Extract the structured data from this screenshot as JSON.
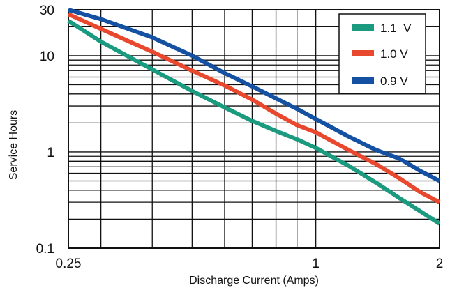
{
  "chart_data": {
    "type": "line",
    "xlabel": "Discharge Current (Amps)",
    "ylabel": "Service Hours",
    "x_scale": "log",
    "y_scale": "log",
    "xlim": [
      0.25,
      2
    ],
    "ylim": [
      0.1,
      30
    ],
    "x_ticks": [
      {
        "value": 0.25,
        "label": "0.25"
      },
      {
        "value": 1,
        "label": "1"
      },
      {
        "value": 2,
        "label": "2"
      }
    ],
    "y_ticks": [
      {
        "value": 0.1,
        "label": "0.1"
      },
      {
        "value": 1,
        "label": "1"
      },
      {
        "value": 10,
        "label": "10"
      },
      {
        "value": 30,
        "label": "30"
      }
    ],
    "grid": true,
    "legend_position": "top-right",
    "series": [
      {
        "name": "1.1  V",
        "color": "#1a9a7e",
        "points": [
          [
            0.25,
            23.0
          ],
          [
            0.3,
            14.0
          ],
          [
            0.4,
            7.2
          ],
          [
            0.5,
            4.3
          ],
          [
            0.6,
            2.9
          ],
          [
            0.7,
            2.1
          ],
          [
            0.8,
            1.65
          ],
          [
            0.9,
            1.35
          ],
          [
            1.0,
            1.1
          ],
          [
            1.2,
            0.72
          ],
          [
            1.4,
            0.48
          ],
          [
            1.6,
            0.33
          ],
          [
            1.8,
            0.24
          ],
          [
            2.0,
            0.18
          ]
        ]
      },
      {
        "name": "1.0 V",
        "color": "#e8482e",
        "points": [
          [
            0.25,
            27.0
          ],
          [
            0.3,
            19.0
          ],
          [
            0.4,
            11.0
          ],
          [
            0.5,
            7.0
          ],
          [
            0.6,
            4.9
          ],
          [
            0.7,
            3.5
          ],
          [
            0.8,
            2.5
          ],
          [
            0.9,
            1.9
          ],
          [
            1.0,
            1.6
          ],
          [
            1.2,
            1.05
          ],
          [
            1.4,
            0.75
          ],
          [
            1.6,
            0.53
          ],
          [
            1.8,
            0.38
          ],
          [
            2.0,
            0.3
          ]
        ]
      },
      {
        "name": "0.9 V",
        "color": "#1551a3",
        "points": [
          [
            0.25,
            30.0
          ],
          [
            0.3,
            24.0
          ],
          [
            0.4,
            15.5
          ],
          [
            0.5,
            10.0
          ],
          [
            0.6,
            6.6
          ],
          [
            0.7,
            4.8
          ],
          [
            0.8,
            3.6
          ],
          [
            0.9,
            2.8
          ],
          [
            1.0,
            2.2
          ],
          [
            1.2,
            1.45
          ],
          [
            1.4,
            1.05
          ],
          [
            1.6,
            0.85
          ],
          [
            1.8,
            0.63
          ],
          [
            2.0,
            0.5
          ]
        ]
      }
    ]
  }
}
